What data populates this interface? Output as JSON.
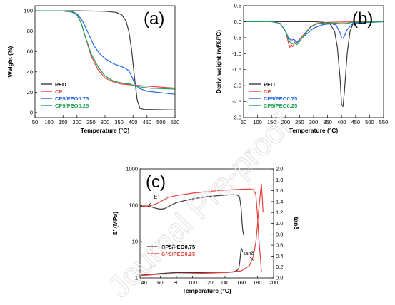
{
  "figure": {
    "watermark": "Journal Pre-proof"
  },
  "chart_data": [
    {
      "id": "a",
      "panel_label": "(a)",
      "type": "line",
      "xlabel": "Temperature (°C)",
      "ylabel": "Weight (%)",
      "xlim": [
        50,
        550
      ],
      "ylim": [
        -5,
        105
      ],
      "xticks": [
        50,
        100,
        150,
        200,
        250,
        300,
        350,
        400,
        450,
        500,
        550
      ],
      "yticks": [
        0,
        20,
        40,
        60,
        80,
        100
      ],
      "legend_position": "bottom-left",
      "series": [
        {
          "name": "PEO",
          "color": "#3a3a3a",
          "x": [
            50,
            100,
            200,
            300,
            340,
            360,
            375,
            385,
            395,
            405,
            415,
            425,
            440,
            550
          ],
          "y": [
            100,
            100,
            100,
            99.5,
            98.5,
            96,
            90,
            80,
            62,
            35,
            12,
            4,
            3,
            2.5
          ]
        },
        {
          "name": "CP",
          "color": "#e8413a",
          "x": [
            50,
            150,
            180,
            200,
            215,
            230,
            250,
            275,
            300,
            330,
            360,
            400,
            450,
            550
          ],
          "y": [
            100,
            99.8,
            99,
            96,
            88,
            74,
            56,
            42,
            34,
            30,
            28,
            27,
            26,
            24
          ]
        },
        {
          "name": "CP5/PEO0.75",
          "color": "#2166e8",
          "x": [
            50,
            150,
            180,
            200,
            220,
            240,
            260,
            280,
            300,
            330,
            350,
            370,
            385,
            395,
            405,
            420,
            450,
            550
          ],
          "y": [
            100,
            99.8,
            99.5,
            97,
            90,
            78,
            66,
            58,
            53,
            48,
            46,
            44,
            41,
            36,
            29,
            24,
            21,
            18
          ]
        },
        {
          "name": "CP9/PEO0.25",
          "color": "#22a05a",
          "x": [
            50,
            150,
            180,
            200,
            215,
            230,
            250,
            275,
            300,
            330,
            360,
            390,
            410,
            430,
            460,
            550
          ],
          "y": [
            100,
            99.8,
            99,
            96,
            88,
            74,
            58,
            45,
            36,
            31,
            29,
            28,
            26,
            25,
            24,
            23
          ]
        }
      ]
    },
    {
      "id": "b",
      "panel_label": "(b)",
      "type": "line",
      "xlabel": "Temperature (°C)",
      "ylabel": "Deriv. weight (wt%/°C)",
      "xlim": [
        50,
        550
      ],
      "ylim": [
        -3.0,
        0.5
      ],
      "xticks": [
        50,
        100,
        150,
        200,
        250,
        300,
        350,
        400,
        450,
        500,
        550
      ],
      "yticks": [
        "0.5",
        "0.0",
        "-0.5",
        "-1.0",
        "-1.5",
        "-2.0",
        "-2.5",
        "-3.0"
      ],
      "legend_position": "bottom-left",
      "series": [
        {
          "name": "PEO",
          "color": "#3a3a3a",
          "x": [
            50,
            300,
            340,
            360,
            375,
            385,
            395,
            400,
            405,
            410,
            420,
            430,
            440,
            460,
            550
          ],
          "y": [
            0,
            0,
            -0.02,
            -0.08,
            -0.3,
            -0.8,
            -1.8,
            -2.6,
            -2.65,
            -2.2,
            -1.0,
            -0.3,
            -0.08,
            -0.02,
            0
          ]
        },
        {
          "name": "CP",
          "color": "#e8413a",
          "x": [
            50,
            150,
            180,
            200,
            210,
            215,
            220,
            225,
            230,
            235,
            240,
            250,
            260,
            275,
            290,
            310,
            350,
            400,
            550
          ],
          "y": [
            0,
            0,
            -0.05,
            -0.3,
            -0.65,
            -0.8,
            -0.72,
            -0.78,
            -0.7,
            -0.6,
            -0.65,
            -0.55,
            -0.45,
            -0.3,
            -0.15,
            -0.06,
            -0.02,
            -0.01,
            0
          ]
        },
        {
          "name": "CP5/PEO0.75",
          "color": "#2166e8",
          "x": [
            50,
            150,
            180,
            200,
            210,
            220,
            230,
            240,
            250,
            260,
            280,
            300,
            330,
            360,
            380,
            395,
            400,
            405,
            410,
            420,
            440,
            550
          ],
          "y": [
            0,
            0,
            -0.05,
            -0.3,
            -0.5,
            -0.58,
            -0.55,
            -0.65,
            -0.6,
            -0.5,
            -0.35,
            -0.2,
            -0.1,
            -0.06,
            -0.1,
            -0.35,
            -0.5,
            -0.52,
            -0.45,
            -0.25,
            -0.05,
            0
          ]
        },
        {
          "name": "CP9/PEO0.25",
          "color": "#22a05a",
          "x": [
            50,
            150,
            180,
            200,
            210,
            220,
            230,
            240,
            250,
            260,
            275,
            290,
            310,
            350,
            400,
            420,
            440,
            550
          ],
          "y": [
            0,
            0,
            -0.05,
            -0.3,
            -0.55,
            -0.7,
            -0.66,
            -0.72,
            -0.62,
            -0.5,
            -0.32,
            -0.17,
            -0.07,
            -0.03,
            -0.06,
            -0.05,
            -0.02,
            0
          ]
        }
      ]
    },
    {
      "id": "c",
      "panel_label": "(c)",
      "type": "line",
      "xlabel": "Temperature (°C)",
      "ylabel": "E' (MPa)",
      "y2label": "tanδ",
      "xlim": [
        35,
        200
      ],
      "ylim": [
        1,
        1000
      ],
      "yscale": "log",
      "y2lim": [
        0.0,
        2.0
      ],
      "xticks": [
        40,
        60,
        80,
        100,
        120,
        140,
        160,
        180,
        200
      ],
      "yticks": [
        "1",
        "10",
        "100",
        "1000"
      ],
      "y2ticks": [
        "0.0",
        "0.2",
        "0.4",
        "0.6",
        "0.8",
        "1.0",
        "1.2",
        "1.4",
        "1.6",
        "1.8",
        "2.0"
      ],
      "annotations": {
        "modulus": "E'",
        "damping": "tanδ"
      },
      "legend_position": "bottom-left",
      "series": [
        {
          "name": "CP5/PEO0.75 E'",
          "legend": "CP5/PEO0.75",
          "color": "#3a3a3a",
          "axis": "left",
          "x": [
            35,
            45,
            55,
            60,
            65,
            70,
            80,
            100,
            120,
            140,
            150,
            155,
            158,
            160,
            161,
            162,
            163
          ],
          "y": [
            95,
            95,
            82,
            78,
            80,
            92,
            118,
            150,
            175,
            190,
            195,
            190,
            170,
            80,
            35,
            20,
            15
          ]
        },
        {
          "name": "CP9/PEO0.25 E'",
          "legend": "CP9/PEO0.25",
          "color": "#e8413a",
          "axis": "left",
          "x": [
            35,
            40,
            50,
            55,
            60,
            70,
            80,
            100,
            120,
            140,
            160,
            170,
            175,
            178,
            180,
            182,
            184,
            185
          ],
          "y": [
            92,
            93,
            100,
            110,
            125,
            165,
            185,
            215,
            240,
            260,
            275,
            280,
            270,
            200,
            60,
            10,
            3,
            1.5
          ]
        },
        {
          "name": "CP5/PEO0.75 tanδ",
          "color": "#3a3a3a",
          "axis": "right",
          "x": [
            35,
            60,
            80,
            100,
            120,
            140,
            150,
            155,
            157,
            158,
            159,
            160,
            161,
            162
          ],
          "y": [
            0.05,
            0.08,
            0.1,
            0.1,
            0.1,
            0.1,
            0.11,
            0.14,
            0.18,
            0.26,
            0.4,
            0.55,
            0.52,
            0.47
          ]
        },
        {
          "name": "CP9/PEO0.25 tanδ",
          "color": "#e8413a",
          "axis": "right",
          "x": [
            35,
            60,
            100,
            140,
            160,
            170,
            175,
            178,
            180,
            182,
            184,
            185,
            186,
            187
          ],
          "y": [
            0.04,
            0.07,
            0.08,
            0.1,
            0.13,
            0.22,
            0.4,
            0.65,
            0.95,
            1.3,
            1.6,
            1.72,
            1.5,
            1.2
          ]
        }
      ]
    }
  ]
}
